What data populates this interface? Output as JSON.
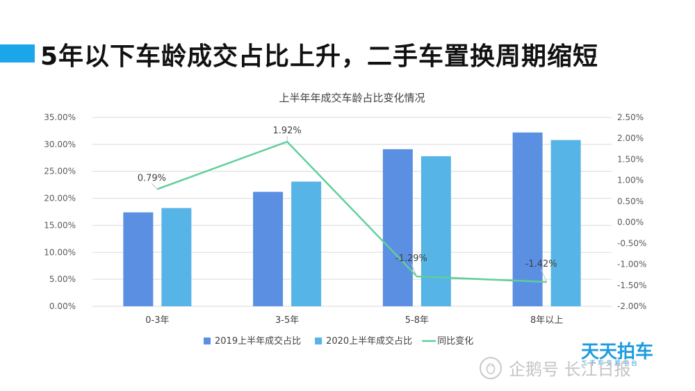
{
  "headline": "5年以下车龄成交占比上升，二手车置换周期缩短",
  "chart_data": {
    "type": "bar",
    "title": "上半年年成交车龄占比变化情况",
    "categories": [
      "0-3年",
      "3-5年",
      "5-8年",
      "8年以上"
    ],
    "series": [
      {
        "name": "2019上半年成交占比",
        "type": "bar",
        "axis": "left",
        "color": "#5b8fe2",
        "values": [
          17.4,
          21.2,
          29.1,
          32.2
        ]
      },
      {
        "name": "2020上半年成交占比",
        "type": "bar",
        "axis": "left",
        "color": "#56b4e6",
        "values": [
          18.2,
          23.1,
          27.8,
          30.8
        ]
      },
      {
        "name": "同比变化",
        "type": "line",
        "axis": "right",
        "color": "#5fcf9a",
        "values": [
          0.79,
          1.92,
          -1.29,
          -1.42
        ]
      }
    ],
    "data_labels": [
      "0.79%",
      "1.92%",
      "-1.29%",
      "-1.42%"
    ],
    "y_left": {
      "min": 0,
      "max": 35,
      "ticks": [
        "0.00%",
        "5.00%",
        "10.00%",
        "15.00%",
        "20.00%",
        "25.00%",
        "30.00%",
        "35.00%"
      ]
    },
    "y_right": {
      "min": -2,
      "max": 2.5,
      "ticks": [
        "-2.00%",
        "-1.50%",
        "-1.00%",
        "-0.50%",
        "0.00%",
        "0.50%",
        "1.00%",
        "1.50%",
        "2.00%",
        "2.50%"
      ]
    },
    "grid": true,
    "legend_position": "bottom"
  },
  "watermark": {
    "brand": "天天拍车",
    "brand_sub": "二手车交易平台",
    "corner": "企鹅号 长江日报"
  }
}
